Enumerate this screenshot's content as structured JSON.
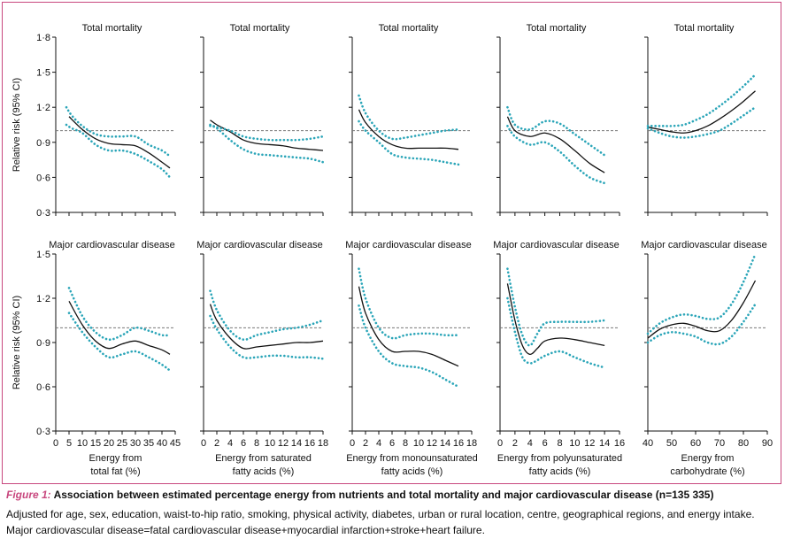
{
  "figure": {
    "caption_label": "Figure 1:",
    "caption_title": "Association between estimated percentage energy from nutrients and total mortality and major cardiovascular disease (n=135 335)",
    "caption_line1": "Adjusted for age, sex, education, waist-to-hip ratio, smoking, physical activity, diabetes, urban or rural location, centre, geographical regions, and energy intake.",
    "caption_line2": "Major cardiovascular disease=fatal cardiovascular disease+myocardial infarction+stroke+heart failure."
  },
  "colors": {
    "frame": "#c8477e",
    "estimate_line": "#111111",
    "ci_dots": "#2aa5b8",
    "reference_line": "#777777",
    "caption_label": "#c8477e"
  },
  "chart_data": [
    {
      "type": "line",
      "title": "Total mortality",
      "ylabel": "Relative risk (95% CI)",
      "xlabel": "Energy from total fat (%)",
      "xlim": [
        0,
        45
      ],
      "ylim": [
        0.3,
        1.8
      ],
      "xticks": [
        0,
        5,
        10,
        15,
        20,
        25,
        30,
        35,
        40,
        45
      ],
      "yticks": [
        0.3,
        0.6,
        0.9,
        1.2,
        1.5,
        1.8
      ],
      "ytick_labels": [
        "0·3",
        "0·6",
        "0·9",
        "1·2",
        "1·5",
        "1·8"
      ],
      "reference": 1.0,
      "series": [
        {
          "role": "estimate",
          "x": [
            5,
            10,
            15,
            20,
            25,
            30,
            35,
            40,
            43
          ],
          "y": [
            1.12,
            1.01,
            0.93,
            0.89,
            0.88,
            0.87,
            0.81,
            0.73,
            0.68
          ]
        },
        {
          "role": "upper_ci",
          "x": [
            4,
            6,
            10,
            15,
            20,
            25,
            30,
            35,
            40,
            43
          ],
          "y": [
            1.2,
            1.13,
            1.04,
            0.97,
            0.95,
            0.95,
            0.95,
            0.88,
            0.83,
            0.78
          ]
        },
        {
          "role": "lower_ci",
          "x": [
            4,
            6,
            10,
            15,
            20,
            25,
            30,
            35,
            40,
            43
          ],
          "y": [
            1.05,
            1.02,
            0.98,
            0.88,
            0.83,
            0.83,
            0.8,
            0.74,
            0.67,
            0.6
          ]
        }
      ]
    },
    {
      "type": "line",
      "title": "Total mortality",
      "ylabel": "",
      "xlabel": "Energy from saturated fatty acids (%)",
      "xlim": [
        0,
        18
      ],
      "ylim": [
        0.3,
        1.8
      ],
      "xticks": [
        0,
        2,
        4,
        6,
        8,
        10,
        12,
        14,
        16,
        18
      ],
      "yticks": [
        0.3,
        0.6,
        0.9,
        1.2,
        1.5,
        1.8
      ],
      "reference": 1.0,
      "series": [
        {
          "role": "estimate",
          "x": [
            1,
            2,
            4,
            6,
            8,
            10,
            12,
            14,
            16,
            18
          ],
          "y": [
            1.09,
            1.05,
            0.99,
            0.92,
            0.89,
            0.88,
            0.87,
            0.85,
            0.84,
            0.83
          ]
        },
        {
          "role": "upper_ci",
          "x": [
            1,
            2,
            4,
            6,
            8,
            10,
            12,
            14,
            16,
            18
          ],
          "y": [
            1.05,
            1.03,
            1.0,
            0.95,
            0.93,
            0.92,
            0.92,
            0.92,
            0.93,
            0.95
          ]
        },
        {
          "role": "lower_ci",
          "x": [
            1,
            2,
            4,
            6,
            8,
            10,
            12,
            14,
            16,
            18
          ],
          "y": [
            1.04,
            1.02,
            0.92,
            0.84,
            0.8,
            0.79,
            0.78,
            0.77,
            0.76,
            0.73
          ]
        }
      ]
    },
    {
      "type": "line",
      "title": "Total mortality",
      "ylabel": "",
      "xlabel": "Energy from monounsaturated fatty acids (%)",
      "xlim": [
        0,
        18
      ],
      "ylim": [
        0.3,
        1.8
      ],
      "xticks": [
        0,
        2,
        4,
        6,
        8,
        10,
        12,
        14,
        16,
        18
      ],
      "yticks": [
        0.3,
        0.6,
        0.9,
        1.2,
        1.5,
        1.8
      ],
      "reference": 1.0,
      "series": [
        {
          "role": "estimate",
          "x": [
            1,
            2,
            4,
            6,
            8,
            10,
            12,
            14,
            16
          ],
          "y": [
            1.18,
            1.07,
            0.95,
            0.88,
            0.85,
            0.85,
            0.85,
            0.85,
            0.84
          ]
        },
        {
          "role": "upper_ci",
          "x": [
            1,
            2,
            4,
            6,
            8,
            10,
            12,
            14,
            16
          ],
          "y": [
            1.3,
            1.15,
            1.0,
            0.93,
            0.94,
            0.96,
            0.98,
            1.0,
            1.01
          ]
        },
        {
          "role": "lower_ci",
          "x": [
            1,
            2,
            4,
            6,
            8,
            10,
            12,
            14,
            16
          ],
          "y": [
            1.08,
            1.0,
            0.9,
            0.8,
            0.77,
            0.76,
            0.75,
            0.73,
            0.71
          ]
        }
      ]
    },
    {
      "type": "line",
      "title": "Total mortality",
      "ylabel": "",
      "xlabel": "Energy from polyunsaturated fatty acids (%)",
      "xlim": [
        0,
        16
      ],
      "ylim": [
        0.3,
        1.8
      ],
      "xticks": [
        0,
        2,
        4,
        6,
        8,
        10,
        12,
        14,
        16
      ],
      "yticks": [
        0.3,
        0.6,
        0.9,
        1.2,
        1.5,
        1.8
      ],
      "reference": 1.0,
      "series": [
        {
          "role": "estimate",
          "x": [
            1,
            2,
            4,
            6,
            8,
            10,
            12,
            14
          ],
          "y": [
            1.12,
            1.0,
            0.95,
            0.98,
            0.93,
            0.83,
            0.72,
            0.64
          ]
        },
        {
          "role": "upper_ci",
          "x": [
            1,
            2,
            4,
            6,
            8,
            10,
            12,
            14
          ],
          "y": [
            1.2,
            1.05,
            1.01,
            1.08,
            1.06,
            0.97,
            0.88,
            0.79
          ]
        },
        {
          "role": "lower_ci",
          "x": [
            1,
            2,
            4,
            6,
            8,
            10,
            12,
            14
          ],
          "y": [
            1.04,
            0.95,
            0.88,
            0.9,
            0.82,
            0.7,
            0.6,
            0.55
          ]
        }
      ]
    },
    {
      "type": "line",
      "title": "Total mortality",
      "ylabel": "",
      "xlabel": "Energy from carbohydrate (%)",
      "xlim": [
        40,
        90
      ],
      "ylim": [
        0.3,
        1.8
      ],
      "xticks": [
        40,
        50,
        60,
        70,
        80,
        90
      ],
      "yticks": [
        0.3,
        0.6,
        0.9,
        1.2,
        1.5,
        1.8
      ],
      "reference": 1.0,
      "series": [
        {
          "role": "estimate",
          "x": [
            40,
            45,
            50,
            55,
            60,
            65,
            70,
            75,
            80,
            85
          ],
          "y": [
            1.03,
            1.01,
            0.99,
            0.98,
            1.0,
            1.04,
            1.1,
            1.17,
            1.25,
            1.34
          ]
        },
        {
          "role": "upper_ci",
          "x": [
            40,
            45,
            50,
            55,
            60,
            65,
            70,
            75,
            80,
            85
          ],
          "y": [
            1.04,
            1.04,
            1.04,
            1.05,
            1.09,
            1.14,
            1.21,
            1.29,
            1.38,
            1.48
          ]
        },
        {
          "role": "lower_ci",
          "x": [
            40,
            45,
            50,
            55,
            60,
            65,
            70,
            75,
            80,
            85
          ],
          "y": [
            1.02,
            0.98,
            0.95,
            0.94,
            0.95,
            0.97,
            1.0,
            1.06,
            1.13,
            1.2
          ]
        }
      ]
    },
    {
      "type": "line",
      "title": "Major cardiovascular disease",
      "ylabel": "Relative risk (95% CI)",
      "xlabel": "Energy from total fat (%)",
      "xlim": [
        0,
        45
      ],
      "ylim": [
        0.3,
        1.5
      ],
      "xticks": [
        0,
        5,
        10,
        15,
        20,
        25,
        30,
        35,
        40,
        45
      ],
      "xtick_labels": [
        "0",
        "5",
        "10",
        "15",
        "20",
        "25",
        "30",
        "35",
        "40",
        "45"
      ],
      "yticks": [
        0.3,
        0.6,
        0.9,
        1.2,
        1.5
      ],
      "ytick_labels": [
        "0·3",
        "0·6",
        "0·9",
        "1·2",
        "1·5"
      ],
      "reference": 1.0,
      "series": [
        {
          "role": "estimate",
          "x": [
            5,
            10,
            15,
            20,
            25,
            30,
            35,
            40,
            43
          ],
          "y": [
            1.18,
            1.02,
            0.91,
            0.86,
            0.89,
            0.91,
            0.88,
            0.85,
            0.82
          ]
        },
        {
          "role": "upper_ci",
          "x": [
            5,
            10,
            15,
            20,
            25,
            30,
            35,
            40,
            43
          ],
          "y": [
            1.27,
            1.08,
            0.97,
            0.92,
            0.95,
            1.0,
            0.98,
            0.95,
            0.95
          ]
        },
        {
          "role": "lower_ci",
          "x": [
            5,
            10,
            15,
            20,
            25,
            30,
            35,
            40,
            43
          ],
          "y": [
            1.1,
            0.97,
            0.87,
            0.8,
            0.82,
            0.84,
            0.8,
            0.75,
            0.71
          ]
        }
      ]
    },
    {
      "type": "line",
      "title": "Major cardiovascular disease",
      "ylabel": "",
      "xlabel": "Energy from saturated fatty acids (%)",
      "xlim": [
        0,
        18
      ],
      "ylim": [
        0.3,
        1.5
      ],
      "xticks": [
        0,
        2,
        4,
        6,
        8,
        10,
        12,
        14,
        16,
        18
      ],
      "xtick_labels": [
        "0",
        "2",
        "4",
        "6",
        "8",
        "10",
        "12",
        "14",
        "16",
        "18"
      ],
      "yticks": [
        0.3,
        0.6,
        0.9,
        1.2,
        1.5
      ],
      "reference": 1.0,
      "series": [
        {
          "role": "estimate",
          "x": [
            1,
            2,
            4,
            6,
            8,
            10,
            12,
            14,
            16,
            18
          ],
          "y": [
            1.16,
            1.05,
            0.93,
            0.86,
            0.87,
            0.88,
            0.89,
            0.9,
            0.9,
            0.91
          ]
        },
        {
          "role": "upper_ci",
          "x": [
            1,
            2,
            4,
            6,
            8,
            10,
            12,
            14,
            16,
            18
          ],
          "y": [
            1.25,
            1.12,
            0.98,
            0.92,
            0.95,
            0.97,
            0.99,
            1.0,
            1.02,
            1.05
          ]
        },
        {
          "role": "lower_ci",
          "x": [
            1,
            2,
            4,
            6,
            8,
            10,
            12,
            14,
            16,
            18
          ],
          "y": [
            1.08,
            0.99,
            0.87,
            0.8,
            0.8,
            0.81,
            0.81,
            0.8,
            0.8,
            0.79
          ]
        }
      ]
    },
    {
      "type": "line",
      "title": "Major cardiovascular disease",
      "ylabel": "",
      "xlabel": "Energy from monounsaturated fatty acids (%)",
      "xlim": [
        0,
        18
      ],
      "ylim": [
        0.3,
        1.5
      ],
      "xticks": [
        0,
        2,
        4,
        6,
        8,
        10,
        12,
        14,
        16,
        18
      ],
      "xtick_labels": [
        "0",
        "2",
        "4",
        "6",
        "8",
        "10",
        "12",
        "14",
        "16",
        "18"
      ],
      "yticks": [
        0.3,
        0.6,
        0.9,
        1.2,
        1.5
      ],
      "reference": 1.0,
      "series": [
        {
          "role": "estimate",
          "x": [
            1,
            2,
            4,
            6,
            8,
            10,
            12,
            14,
            16
          ],
          "y": [
            1.28,
            1.1,
            0.92,
            0.84,
            0.84,
            0.84,
            0.82,
            0.78,
            0.74
          ]
        },
        {
          "role": "upper_ci",
          "x": [
            1,
            2,
            4,
            6,
            8,
            10,
            12,
            14,
            16
          ],
          "y": [
            1.4,
            1.2,
            1.0,
            0.93,
            0.95,
            0.96,
            0.96,
            0.95,
            0.95
          ]
        },
        {
          "role": "lower_ci",
          "x": [
            1,
            2,
            4,
            6,
            8,
            10,
            12,
            14,
            16
          ],
          "y": [
            1.15,
            1.0,
            0.84,
            0.76,
            0.74,
            0.73,
            0.7,
            0.65,
            0.6
          ]
        }
      ]
    },
    {
      "type": "line",
      "title": "Major cardiovascular disease",
      "ylabel": "",
      "xlabel": "Energy from polyunsaturated fatty acids (%)",
      "xlim": [
        0,
        16
      ],
      "ylim": [
        0.3,
        1.5
      ],
      "xticks": [
        0,
        2,
        4,
        6,
        8,
        10,
        12,
        14,
        16
      ],
      "xtick_labels": [
        "0",
        "2",
        "4",
        "6",
        "8",
        "10",
        "12",
        "14",
        "16"
      ],
      "yticks": [
        0.3,
        0.6,
        0.9,
        1.2,
        1.5
      ],
      "reference": 1.0,
      "series": [
        {
          "role": "estimate",
          "x": [
            1,
            2,
            3,
            4,
            5,
            6,
            8,
            10,
            12,
            14
          ],
          "y": [
            1.3,
            1.05,
            0.88,
            0.82,
            0.86,
            0.91,
            0.93,
            0.92,
            0.9,
            0.88
          ]
        },
        {
          "role": "upper_ci",
          "x": [
            1,
            2,
            3,
            4,
            5,
            6,
            8,
            10,
            12,
            14
          ],
          "y": [
            1.4,
            1.14,
            0.95,
            0.88,
            0.96,
            1.03,
            1.04,
            1.04,
            1.04,
            1.05
          ]
        },
        {
          "role": "lower_ci",
          "x": [
            1,
            2,
            3,
            4,
            5,
            6,
            8,
            10,
            12,
            14
          ],
          "y": [
            1.2,
            0.97,
            0.8,
            0.76,
            0.78,
            0.81,
            0.84,
            0.8,
            0.76,
            0.73
          ]
        }
      ]
    },
    {
      "type": "line",
      "title": "Major cardiovascular disease",
      "ylabel": "",
      "xlabel": "Energy from carbohydrate (%)",
      "xlim": [
        40,
        90
      ],
      "ylim": [
        0.3,
        1.5
      ],
      "xticks": [
        40,
        50,
        60,
        70,
        80,
        90
      ],
      "xtick_labels": [
        "40",
        "50",
        "60",
        "70",
        "80",
        "90"
      ],
      "yticks": [
        0.3,
        0.6,
        0.9,
        1.2,
        1.5
      ],
      "reference": 1.0,
      "series": [
        {
          "role": "estimate",
          "x": [
            40,
            45,
            50,
            55,
            60,
            65,
            70,
            75,
            80,
            85
          ],
          "y": [
            0.93,
            0.99,
            1.02,
            1.03,
            1.01,
            0.98,
            0.98,
            1.05,
            1.17,
            1.32
          ]
        },
        {
          "role": "upper_ci",
          "x": [
            40,
            45,
            50,
            55,
            60,
            65,
            70,
            75,
            80,
            85
          ],
          "y": [
            0.96,
            1.03,
            1.07,
            1.09,
            1.08,
            1.06,
            1.07,
            1.16,
            1.31,
            1.5
          ]
        },
        {
          "role": "lower_ci",
          "x": [
            40,
            45,
            50,
            55,
            60,
            65,
            70,
            75,
            80,
            85
          ],
          "y": [
            0.9,
            0.95,
            0.97,
            0.96,
            0.94,
            0.9,
            0.89,
            0.94,
            1.04,
            1.16
          ]
        }
      ]
    }
  ]
}
